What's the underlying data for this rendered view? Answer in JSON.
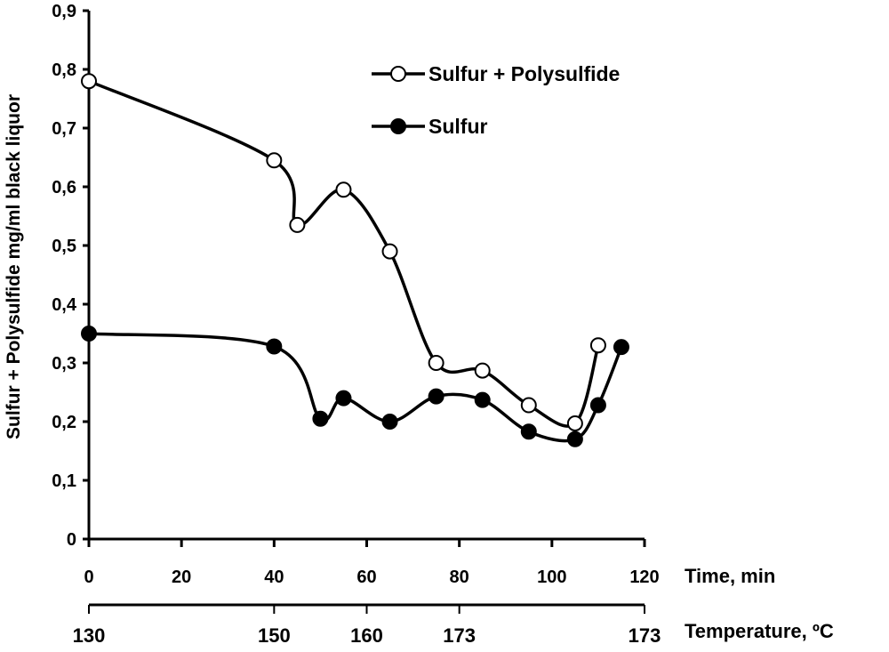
{
  "chart_data": {
    "type": "line",
    "title": "",
    "ylabel": "Sulfur + Polysulfide mg/ml black liquor",
    "xlabel": "Time, min",
    "x2label": "Temperature, ºC",
    "xlim": [
      0,
      120
    ],
    "ylim": [
      0,
      0.9
    ],
    "xticks": [
      0,
      20,
      40,
      60,
      80,
      100,
      120
    ],
    "xtick_labels": [
      "0",
      "20",
      "40",
      "60",
      "80",
      "100",
      "120"
    ],
    "yticks": [
      0,
      0.1,
      0.2,
      0.3,
      0.4,
      0.5,
      0.6,
      0.7,
      0.8,
      0.9
    ],
    "ytick_labels": [
      "0",
      "0,1",
      "0,2",
      "0,3",
      "0,4",
      "0,5",
      "0,6",
      "0,7",
      "0,8",
      "0,9"
    ],
    "x2ticks": [
      0,
      40,
      60,
      80,
      120
    ],
    "x2tick_labels": [
      "130",
      "150",
      "160",
      "173",
      "173"
    ],
    "grid": false,
    "legend_position": "top-right",
    "series": [
      {
        "name": "Sulfur + Polysulfide",
        "marker": "open-circle",
        "x": [
          0,
          40,
          45,
          55,
          65,
          75,
          85,
          95,
          105,
          110
        ],
        "y": [
          0.78,
          0.645,
          0.535,
          0.595,
          0.49,
          0.3,
          0.287,
          0.228,
          0.197,
          0.33
        ]
      },
      {
        "name": "Sulfur",
        "marker": "filled-circle",
        "x": [
          0,
          40,
          50,
          55,
          65,
          75,
          85,
          95,
          105,
          110,
          115
        ],
        "y": [
          0.35,
          0.328,
          0.205,
          0.24,
          0.2,
          0.243,
          0.237,
          0.183,
          0.17,
          0.228,
          0.327
        ]
      }
    ]
  }
}
